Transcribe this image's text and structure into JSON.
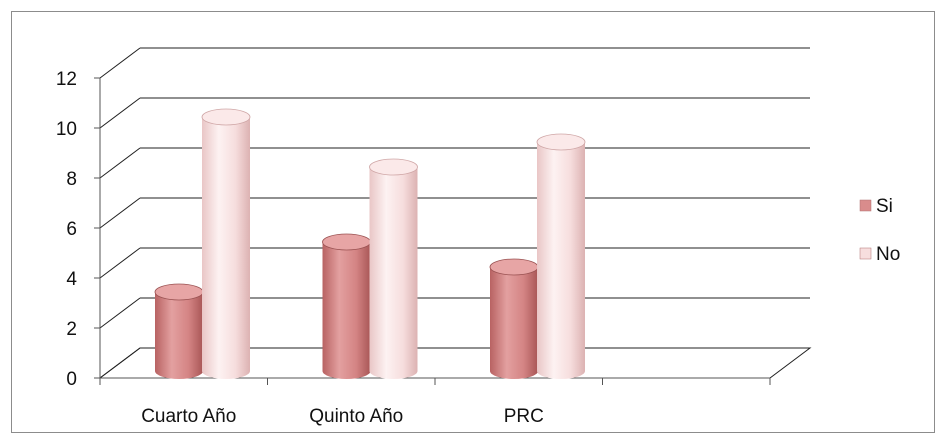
{
  "chart_data": {
    "type": "bar",
    "style": "3d-cylinder",
    "categories": [
      "Cuarto Año",
      "Quinto Año",
      "PRC"
    ],
    "series": [
      {
        "name": "Si",
        "values": [
          4,
          6,
          5
        ],
        "color": "#d98c8c"
      },
      {
        "name": "No",
        "values": [
          11,
          9,
          10
        ],
        "color": "#f7dede"
      }
    ],
    "yticks": [
      "0",
      "2",
      "4",
      "6",
      "8",
      "10",
      "12"
    ],
    "ylim": [
      0,
      12
    ],
    "grid": true,
    "legend": "right"
  }
}
